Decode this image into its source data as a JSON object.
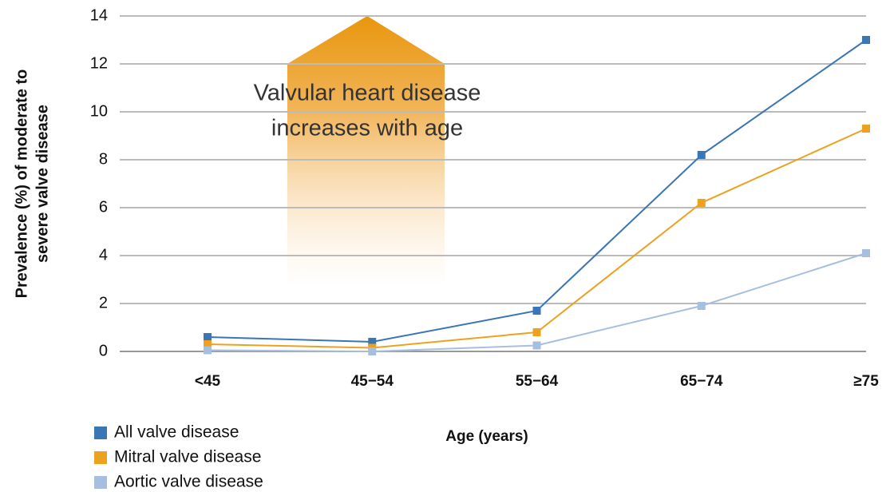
{
  "chart_data": {
    "type": "line",
    "annotation": [
      "Valvular heart disease",
      "increases with age"
    ],
    "ylabel": [
      "Prevalence (%) of moderate to",
      "severe valve disease"
    ],
    "xlabel": "Age (years)",
    "categories": [
      "<45",
      "45−54",
      "55−64",
      "65−74",
      "≥75"
    ],
    "series": [
      {
        "name": "All valve disease",
        "color": "#3a75b5",
        "values": [
          0.6,
          0.4,
          1.7,
          8.2,
          13
        ]
      },
      {
        "name": "Mitral valve disease",
        "color": "#eda21f",
        "values": [
          0.3,
          0.15,
          0.8,
          6.2,
          9.3
        ]
      },
      {
        "name": "Aortic valve disease",
        "color": "#a6bfe0",
        "values": [
          0.05,
          0,
          0.25,
          1.9,
          4.1
        ]
      }
    ],
    "ylim": [
      0,
      14
    ],
    "yticks": [
      0,
      2,
      4,
      6,
      8,
      10,
      12,
      14
    ],
    "grid": true
  }
}
